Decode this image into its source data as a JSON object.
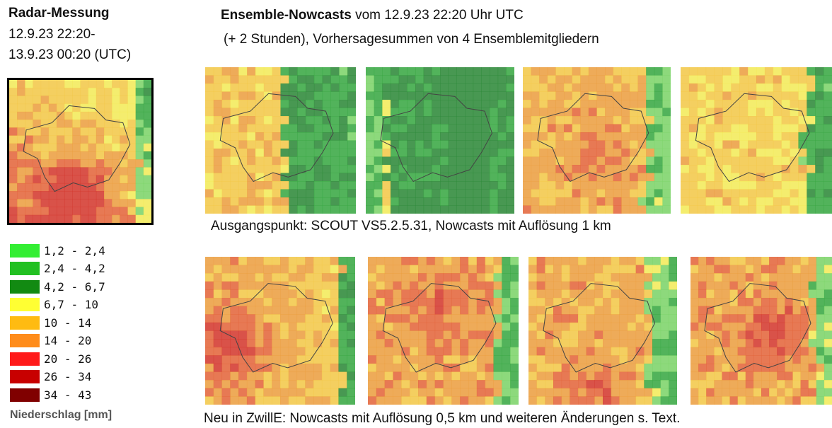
{
  "left": {
    "title": "Radar-Messung",
    "period": [
      "12.9.23 22:20-",
      "13.9.23 00:20 (UTC)"
    ]
  },
  "legend": {
    "items": [
      {
        "label": "1,2 - 2,4",
        "color": "#33ee33"
      },
      {
        "label": "2,4 - 4,2",
        "color": "#22c022"
      },
      {
        "label": "4,2 - 6,7",
        "color": "#128a12"
      },
      {
        "label": "6,7 - 10",
        "color": "#ffff33"
      },
      {
        "label": "10 - 14",
        "color": "#ffbb11"
      },
      {
        "label": "14 - 20",
        "color": "#ff8c1a"
      },
      {
        "label": "20 - 26",
        "color": "#ff1a1a"
      },
      {
        "label": "26 - 34",
        "color": "#c80000"
      },
      {
        "label": "34 - 43",
        "color": "#800000"
      }
    ],
    "title": "Niederschlag [mm]"
  },
  "header": {
    "title_bold": "Ensemble-Nowcasts",
    "title_rest": "vom 12.9.23 22:20 Uhr UTC",
    "subtitle": "(+ 2 Stunden), Vorhersagesummen von 4 Ensemblemitgliedern"
  },
  "rows": [
    {
      "caption": "Ausgangspunkt: SCOUT VS5.2.5.31, Nowcasts mit Auflösung 1 km"
    },
    {
      "caption": "Neu in ZwillE: Nowcasts mit Auflösung 0,5 km und weiteren Änderungen s. Text."
    }
  ]
}
